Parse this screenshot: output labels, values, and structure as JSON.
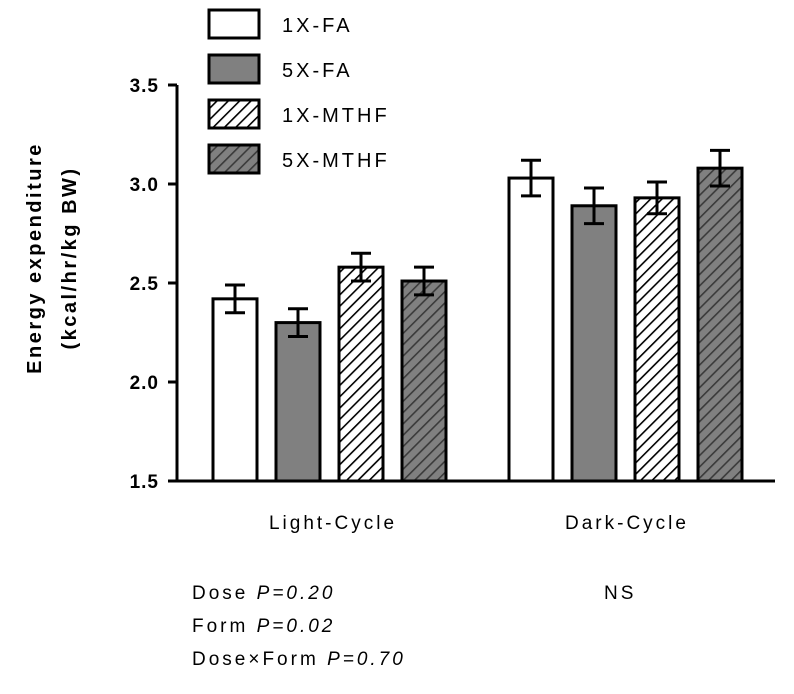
{
  "chart_data": {
    "type": "bar",
    "title": "",
    "xlabel": "",
    "ylabel_line1": "Energy expenditure",
    "ylabel_line2": "(kcal/hr/kg BW)",
    "ylim": [
      1.5,
      3.5
    ],
    "yticks": [
      "1.5",
      "2.0",
      "2.5",
      "3.0",
      "3.5"
    ],
    "categories": [
      "Light-Cycle",
      "Dark-Cycle"
    ],
    "series": [
      {
        "name": "1X-FA",
        "fill": "white",
        "hatch": false,
        "values": [
          2.42,
          3.03
        ],
        "errors": [
          0.07,
          0.09
        ]
      },
      {
        "name": "5X-FA",
        "fill": "#808080",
        "hatch": false,
        "values": [
          2.3,
          2.89
        ],
        "errors": [
          0.07,
          0.09
        ]
      },
      {
        "name": "1X-MTHF",
        "fill": "white",
        "hatch": true,
        "values": [
          2.58,
          2.93
        ],
        "errors": [
          0.07,
          0.08
        ]
      },
      {
        "name": "5X-MTHF",
        "fill": "#808080",
        "hatch": true,
        "values": [
          2.51,
          3.08
        ],
        "errors": [
          0.07,
          0.09
        ]
      }
    ],
    "legend_position": "top-left",
    "grid": false
  },
  "annotations": {
    "light": {
      "dose_label": "Dose",
      "dose_p": "P=0.20",
      "form_label": "Form",
      "form_p": "P=0.02",
      "interaction_label": "Dose×Form",
      "interaction_p": "P=0.70"
    },
    "dark": "NS"
  }
}
